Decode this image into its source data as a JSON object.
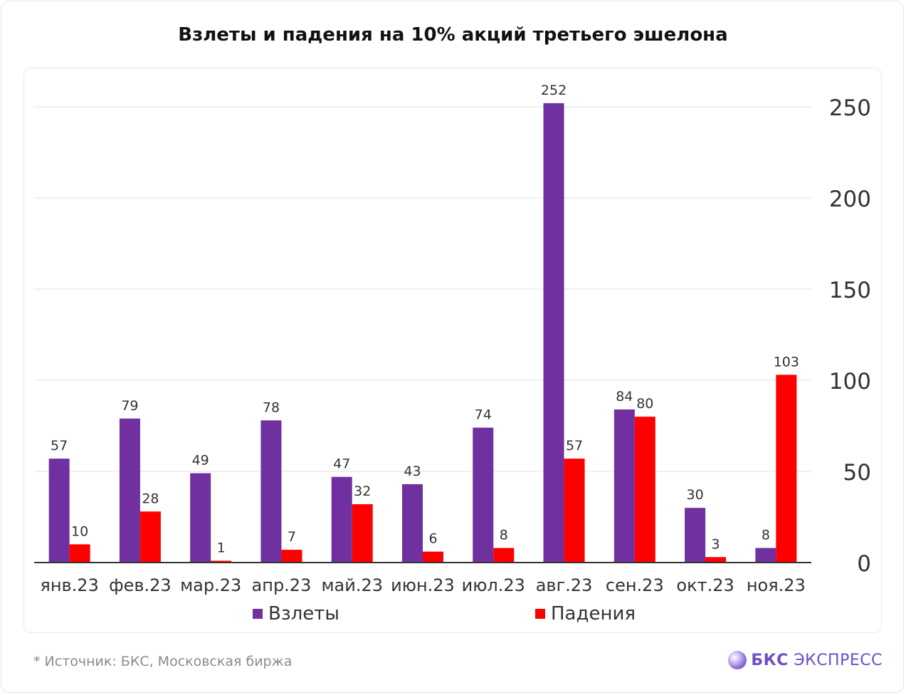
{
  "title": "Взлеты и падения на 10% акций третьего эшелона",
  "footer": {
    "source": "*  Источник: БКС, Московская биржа",
    "brand_bold": "БКС",
    "brand_rest": " ЭКСПРЕСС"
  },
  "colors": {
    "up": "#7030a0",
    "down": "#ff0000",
    "grid": "#ececee",
    "axis": "#333333",
    "tick_text": "#333333",
    "label_text": "#333333"
  },
  "chart_data": {
    "type": "bar",
    "title": "Взлеты и падения на 10% акций третьего эшелона",
    "categories": [
      "янв.23",
      "фев.23",
      "мар.23",
      "апр.23",
      "май.23",
      "июн.23",
      "июл.23",
      "авг.23",
      "сен.23",
      "окт.23",
      "ноя.23"
    ],
    "series": [
      {
        "name": "Взлеты",
        "color": "#7030a0",
        "values": [
          57,
          79,
          49,
          78,
          47,
          43,
          74,
          252,
          84,
          30,
          8
        ]
      },
      {
        "name": "Падения",
        "color": "#ff0000",
        "values": [
          10,
          28,
          1,
          7,
          32,
          6,
          8,
          57,
          80,
          3,
          103
        ]
      }
    ],
    "y_ticks": [
      0,
      50,
      100,
      150,
      200,
      250
    ],
    "ylim": [
      0,
      250
    ],
    "y_axis_side": "right",
    "grid": true,
    "data_labels": true,
    "legend": "bottom"
  }
}
